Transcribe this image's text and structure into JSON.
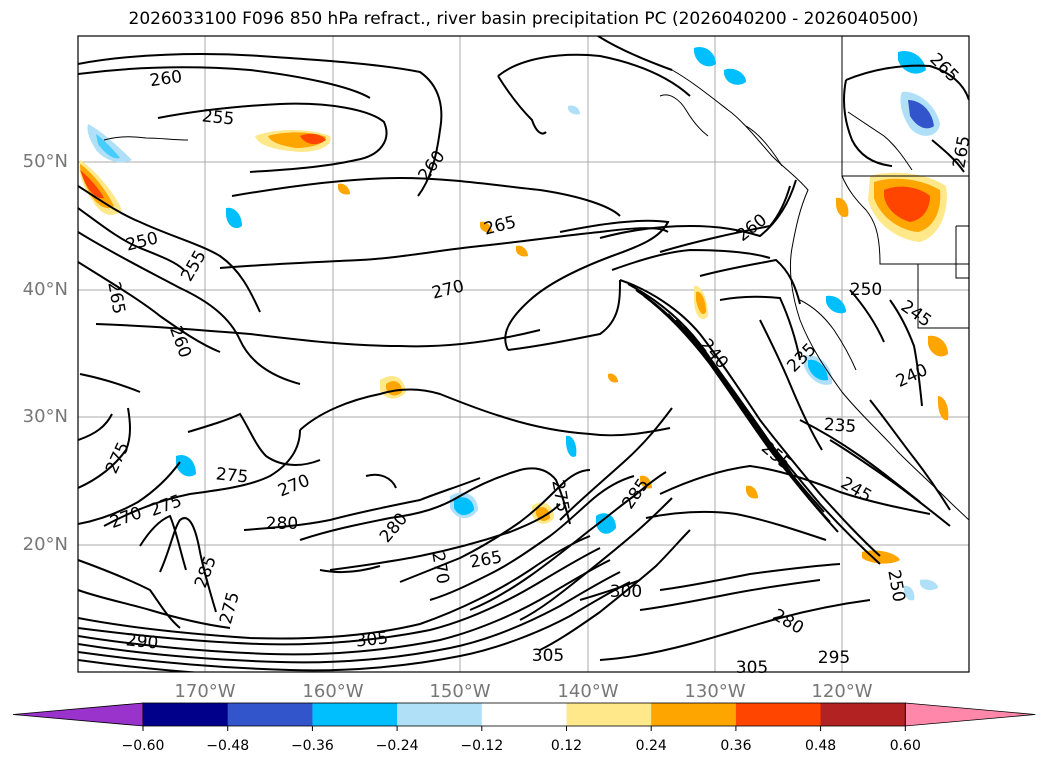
{
  "title": "2026033100 F096 850 hPa refract., river basin precipitation PC (2026040200 - 2026040500)",
  "lat_labels": [
    "50°N",
    "40°N",
    "30°N",
    "20°N"
  ],
  "lon_labels": [
    "170°W",
    "160°W",
    "150°W",
    "140°W",
    "130°W",
    "120°W"
  ],
  "contour_labels": [
    {
      "text": "260"
    },
    {
      "text": "255"
    },
    {
      "text": "260"
    },
    {
      "text": "265"
    },
    {
      "text": "250"
    },
    {
      "text": "255"
    },
    {
      "text": "265"
    },
    {
      "text": "260"
    },
    {
      "text": "270"
    },
    {
      "text": "260"
    },
    {
      "text": "250"
    },
    {
      "text": "245"
    },
    {
      "text": "240"
    },
    {
      "text": "235"
    },
    {
      "text": "240"
    },
    {
      "text": "235"
    },
    {
      "text": "255"
    },
    {
      "text": "245"
    },
    {
      "text": "275"
    },
    {
      "text": "275"
    },
    {
      "text": "270"
    },
    {
      "text": "270"
    },
    {
      "text": "275"
    },
    {
      "text": "280"
    },
    {
      "text": "280"
    },
    {
      "text": "285"
    },
    {
      "text": "275"
    },
    {
      "text": "290"
    },
    {
      "text": "270"
    },
    {
      "text": "265"
    },
    {
      "text": "275"
    },
    {
      "text": "285"
    },
    {
      "text": "305"
    },
    {
      "text": "300"
    },
    {
      "text": "305"
    },
    {
      "text": "280"
    },
    {
      "text": "305"
    },
    {
      "text": "295"
    },
    {
      "text": "250"
    },
    {
      "text": "265"
    },
    {
      "text": "265"
    }
  ],
  "colorbar": {
    "tick_labels": [
      "−0.60",
      "−0.48",
      "−0.36",
      "−0.24",
      "−0.12",
      "0.12",
      "0.24",
      "0.36",
      "0.48",
      "0.60"
    ],
    "colors": [
      "#9933cc",
      "#00008b",
      "#3355cc",
      "#00bfff",
      "#b0e0f8",
      "#ffffff",
      "#ffe88a",
      "#ffa500",
      "#ff4500",
      "#b22222",
      "#ff88aa"
    ]
  }
}
